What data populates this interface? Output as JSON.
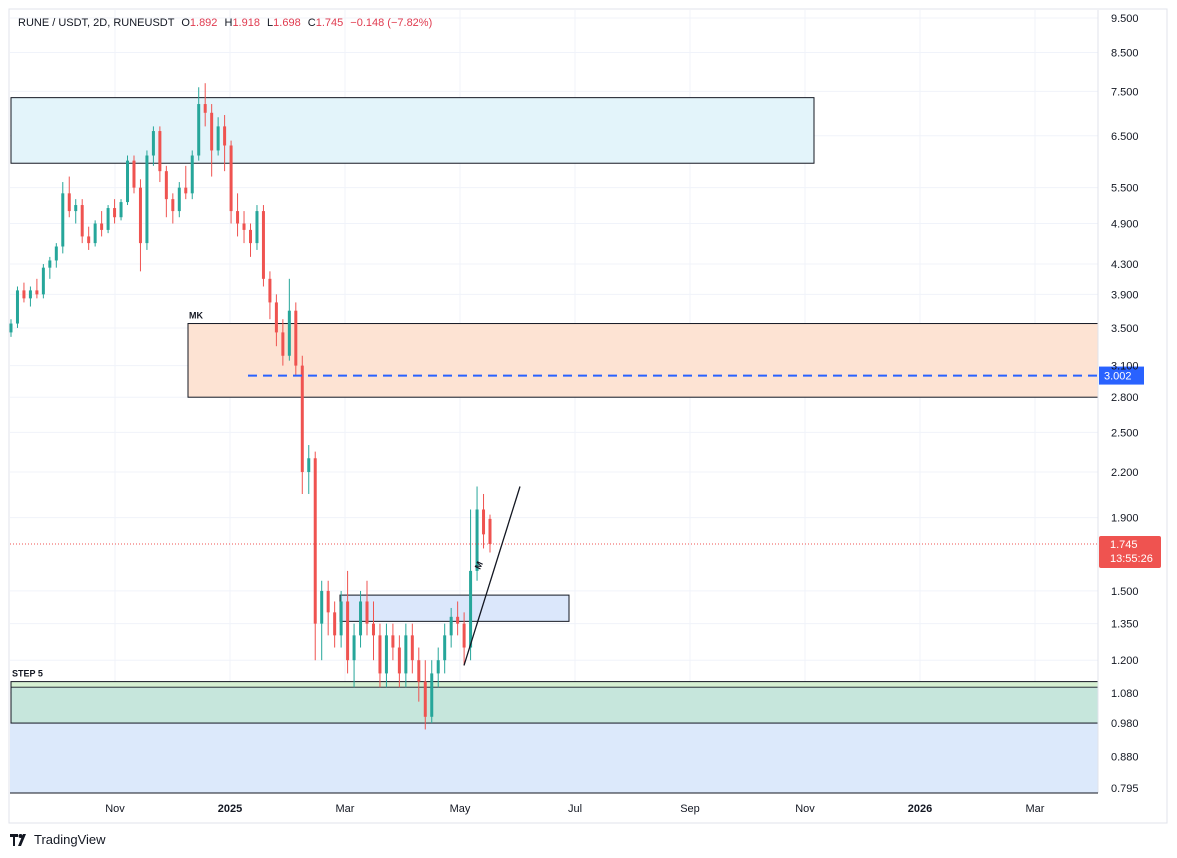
{
  "header": {
    "symbol": "RUNE / USDT, 2D, RUNEUSDT",
    "open_label": "O",
    "open": "1.892",
    "high_label": "H",
    "high": "1.918",
    "low_label": "L",
    "low": "1.698",
    "close_label": "C",
    "close": "1.745",
    "change": "−0.148 (−7.82%)"
  },
  "brand": {
    "name": "TradingView",
    "icon": "tradingview-logo-icon"
  },
  "colors": {
    "up": "#26a69a",
    "down": "#ef5350",
    "blue_line": "#2962ff",
    "top_zone": "#e3f4fa",
    "mk_zone": "#fde3d3",
    "small_zone": "#dbe7fb",
    "step_zone": "#c6e6dc",
    "step_band": "#d6f0d2",
    "bottom_zone": "#dce9fb"
  },
  "chart_data": {
    "type": "candlestick",
    "scale": "log",
    "ylim": [
      0.795,
      9.5
    ],
    "price_ticks": [
      "9.500",
      "8.500",
      "7.500",
      "6.500",
      "5.500",
      "4.900",
      "4.300",
      "3.900",
      "3.500",
      "3.100",
      "2.800",
      "2.500",
      "2.200",
      "1.900",
      "1.500",
      "1.350",
      "1.200",
      "1.080",
      "0.980",
      "0.880",
      "0.795"
    ],
    "time_ticks": [
      "Nov",
      "2025",
      "Mar",
      "May",
      "Jul",
      "Sep",
      "Nov",
      "2026",
      "Mar"
    ],
    "bold_time_ticks": [
      "2025",
      "2026"
    ],
    "last_price": "1.745",
    "countdown": "13:55:26",
    "level_line": {
      "value": "3.002"
    },
    "zones": [
      {
        "name": "supply-zone-top",
        "from": "2024-09",
        "to": "2025-11",
        "low": 5.95,
        "high": 7.35
      },
      {
        "name": "mk-zone",
        "label": "MK",
        "from": "2024-12",
        "to": "2026-04",
        "low": 2.8,
        "high": 3.55
      },
      {
        "name": "demand-zone-small",
        "from": "2025-03",
        "to": "2025-07",
        "low": 1.36,
        "high": 1.48
      },
      {
        "name": "step-5-zone",
        "label": "STEP 5",
        "from": "2024-09",
        "to": "2026-04",
        "low": 0.98,
        "high": 1.12
      }
    ],
    "annotation": {
      "label": "M",
      "from_price": 1.18,
      "to_price": 2.1
    },
    "candles": [
      [
        3.45,
        3.6,
        3.4,
        3.55
      ],
      [
        3.55,
        4.0,
        3.5,
        3.95
      ],
      [
        3.95,
        4.05,
        3.8,
        3.85
      ],
      [
        3.85,
        4.0,
        3.75,
        3.95
      ],
      [
        3.95,
        4.1,
        3.85,
        3.9
      ],
      [
        3.9,
        4.3,
        3.85,
        4.25
      ],
      [
        4.25,
        4.4,
        4.1,
        4.35
      ],
      [
        4.35,
        4.6,
        4.25,
        4.55
      ],
      [
        4.55,
        5.6,
        4.45,
        5.4
      ],
      [
        5.4,
        5.7,
        5.0,
        5.1
      ],
      [
        5.1,
        5.3,
        4.9,
        5.2
      ],
      [
        5.2,
        5.3,
        4.6,
        4.7
      ],
      [
        4.7,
        4.85,
        4.5,
        4.6
      ],
      [
        4.6,
        4.95,
        4.55,
        4.9
      ],
      [
        4.9,
        5.1,
        4.7,
        4.8
      ],
      [
        4.8,
        5.2,
        4.75,
        5.15
      ],
      [
        5.15,
        5.3,
        4.9,
        5.0
      ],
      [
        5.0,
        5.3,
        4.95,
        5.25
      ],
      [
        5.25,
        6.1,
        5.2,
        6.0
      ],
      [
        6.0,
        6.1,
        5.4,
        5.5
      ],
      [
        5.5,
        5.65,
        4.2,
        4.6
      ],
      [
        4.6,
        6.2,
        4.5,
        6.1
      ],
      [
        6.1,
        6.7,
        5.9,
        6.6
      ],
      [
        6.6,
        6.7,
        5.6,
        5.8
      ],
      [
        5.8,
        5.9,
        5.0,
        5.3
      ],
      [
        5.3,
        5.4,
        4.9,
        5.1
      ],
      [
        5.1,
        5.6,
        5.0,
        5.5
      ],
      [
        5.5,
        5.9,
        5.3,
        5.4
      ],
      [
        5.4,
        6.2,
        5.3,
        6.1
      ],
      [
        6.1,
        7.6,
        6.0,
        7.2
      ],
      [
        7.2,
        7.7,
        6.7,
        7.0
      ],
      [
        7.0,
        7.2,
        5.7,
        6.2
      ],
      [
        6.2,
        6.9,
        6.1,
        6.7
      ],
      [
        6.7,
        6.95,
        5.8,
        6.3
      ],
      [
        6.3,
        6.4,
        4.9,
        5.1
      ],
      [
        5.1,
        5.4,
        4.7,
        4.9
      ],
      [
        4.9,
        5.1,
        4.6,
        4.8
      ],
      [
        4.8,
        4.9,
        4.4,
        4.6
      ],
      [
        4.6,
        5.2,
        4.5,
        5.1
      ],
      [
        5.1,
        5.2,
        4.0,
        4.1
      ],
      [
        4.1,
        4.2,
        3.6,
        3.8
      ],
      [
        3.8,
        3.9,
        3.3,
        3.45
      ],
      [
        3.45,
        3.6,
        3.1,
        3.2
      ],
      [
        3.2,
        4.1,
        3.15,
        3.7
      ],
      [
        3.7,
        3.8,
        3.0,
        3.1
      ],
      [
        3.1,
        3.2,
        2.05,
        2.2
      ],
      [
        2.2,
        2.4,
        2.05,
        2.3
      ],
      [
        2.3,
        2.35,
        1.2,
        1.35
      ],
      [
        1.35,
        1.55,
        1.2,
        1.5
      ],
      [
        1.5,
        1.55,
        1.3,
        1.4
      ],
      [
        1.4,
        1.45,
        1.25,
        1.3
      ],
      [
        1.3,
        1.5,
        1.25,
        1.45
      ],
      [
        1.45,
        1.6,
        1.15,
        1.2
      ],
      [
        1.2,
        1.35,
        1.1,
        1.3
      ],
      [
        1.3,
        1.5,
        1.25,
        1.45
      ],
      [
        1.45,
        1.55,
        1.3,
        1.35
      ],
      [
        1.35,
        1.45,
        1.2,
        1.3
      ],
      [
        1.3,
        1.35,
        1.1,
        1.15
      ],
      [
        1.15,
        1.35,
        1.1,
        1.3
      ],
      [
        1.3,
        1.35,
        1.2,
        1.25
      ],
      [
        1.25,
        1.3,
        1.1,
        1.15
      ],
      [
        1.15,
        1.35,
        1.1,
        1.3
      ],
      [
        1.3,
        1.35,
        1.15,
        1.2
      ],
      [
        1.2,
        1.25,
        1.05,
        1.12
      ],
      [
        1.12,
        1.2,
        0.96,
        1.0
      ],
      [
        1.0,
        1.2,
        0.98,
        1.15
      ],
      [
        1.15,
        1.25,
        1.1,
        1.2
      ],
      [
        1.2,
        1.35,
        1.15,
        1.3
      ],
      [
        1.3,
        1.42,
        1.25,
        1.38
      ],
      [
        1.38,
        1.45,
        1.3,
        1.35
      ],
      [
        1.35,
        1.4,
        1.18,
        1.25
      ],
      [
        1.25,
        1.95,
        1.2,
        1.6
      ],
      [
        1.6,
        2.1,
        1.55,
        1.95
      ],
      [
        1.95,
        2.05,
        1.72,
        1.8
      ],
      [
        1.892,
        1.918,
        1.698,
        1.745
      ]
    ]
  }
}
